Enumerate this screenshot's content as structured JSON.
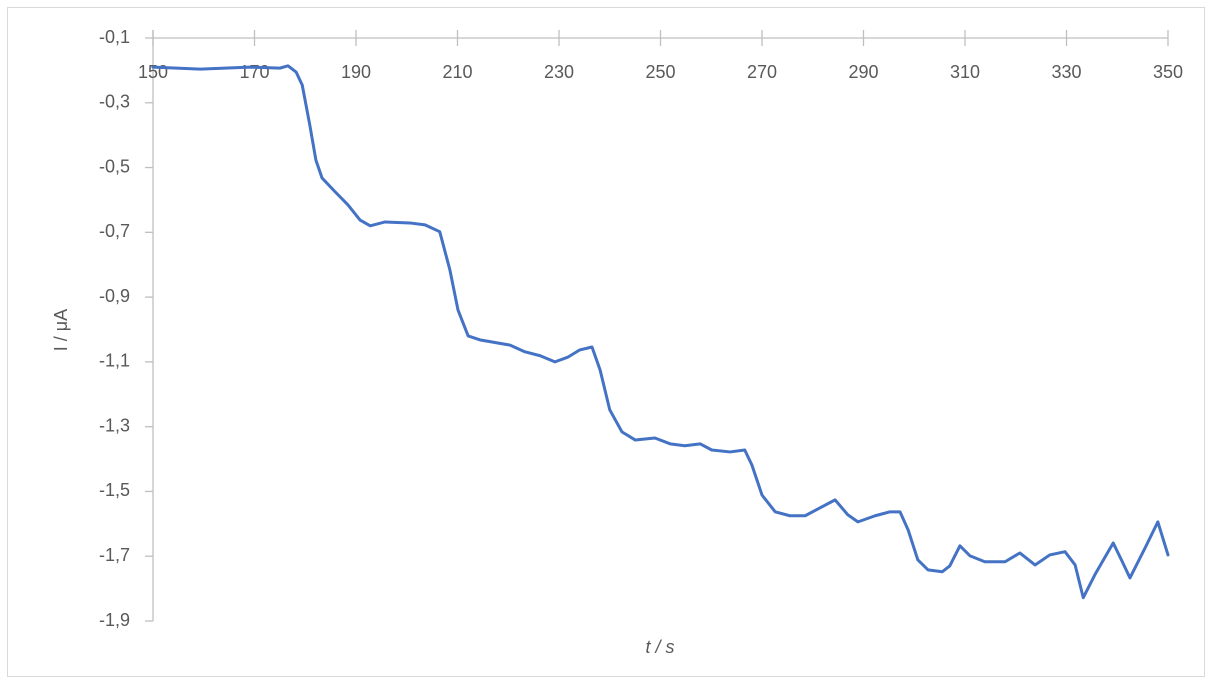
{
  "chart_data": {
    "type": "line",
    "x_label": "t / s",
    "y_label": "I / μA",
    "x": [
      150,
      159.3,
      169.1,
      175,
      176.6,
      178.2,
      179.4,
      180.9,
      182.1,
      183.3,
      185.9,
      188.4,
      190.8,
      192.8,
      195.7,
      200.6,
      203.6,
      206.5,
      208.5,
      210.1,
      212.1,
      214.4,
      220.3,
      223.3,
      226.3,
      229.2,
      231.8,
      234.1,
      236.5,
      238.1,
      240,
      242.4,
      245,
      248.9,
      251.9,
      254.8,
      257.8,
      260.1,
      263.7,
      266.6,
      268,
      270,
      272.6,
      275.5,
      278.5,
      281.4,
      284.4,
      286.9,
      288.9,
      292.3,
      295.2,
      297.2,
      298.8,
      300.7,
      302.7,
      305.5,
      307,
      309,
      311,
      313.9,
      317.9,
      320.8,
      323.8,
      326.7,
      329.7,
      331.7,
      333.3,
      335.6,
      339.2,
      341,
      342.5,
      345.5,
      348,
      350
    ],
    "series": [
      {
        "name": "I",
        "color": "#4472c4",
        "values": [
          -0.19,
          -0.196,
          -0.19,
          -0.193,
          -0.186,
          -0.205,
          -0.245,
          -0.369,
          -0.477,
          -0.532,
          -0.575,
          -0.615,
          -0.662,
          -0.68,
          -0.668,
          -0.671,
          -0.677,
          -0.698,
          -0.816,
          -0.94,
          -1.02,
          -1.032,
          -1.048,
          -1.069,
          -1.081,
          -1.1,
          -1.085,
          -1.063,
          -1.054,
          -1.125,
          -1.248,
          -1.316,
          -1.341,
          -1.335,
          -1.353,
          -1.359,
          -1.353,
          -1.372,
          -1.378,
          -1.372,
          -1.418,
          -1.511,
          -1.563,
          -1.575,
          -1.575,
          -1.551,
          -1.526,
          -1.572,
          -1.594,
          -1.575,
          -1.563,
          -1.563,
          -1.619,
          -1.711,
          -1.742,
          -1.748,
          -1.73,
          -1.668,
          -1.699,
          -1.717,
          -1.717,
          -1.69,
          -1.727,
          -1.696,
          -1.686,
          -1.727,
          -1.828,
          -1.757,
          -1.659,
          -1.717,
          -1.767,
          -1.674,
          -1.594,
          -1.696
        ]
      }
    ],
    "xlim": [
      150,
      350
    ],
    "xticks": [
      150,
      170,
      190,
      210,
      230,
      250,
      270,
      290,
      310,
      330,
      350
    ],
    "ylim": [
      -1.9,
      -0.1
    ],
    "yticks": [
      {
        "value": -0.1,
        "label": "-0,1"
      },
      {
        "value": -0.3,
        "label": "-0,3"
      },
      {
        "value": -0.5,
        "label": "-0,5"
      },
      {
        "value": -0.7,
        "label": "-0,7"
      },
      {
        "value": -0.9,
        "label": "-0,9"
      },
      {
        "value": -1.1,
        "label": "-1,1"
      },
      {
        "value": -1.3,
        "label": "-1,3"
      },
      {
        "value": -1.5,
        "label": "-1,5"
      },
      {
        "value": -1.7,
        "label": "-1,7"
      },
      {
        "value": -1.9,
        "label": "-1,9"
      }
    ],
    "grid": false
  }
}
